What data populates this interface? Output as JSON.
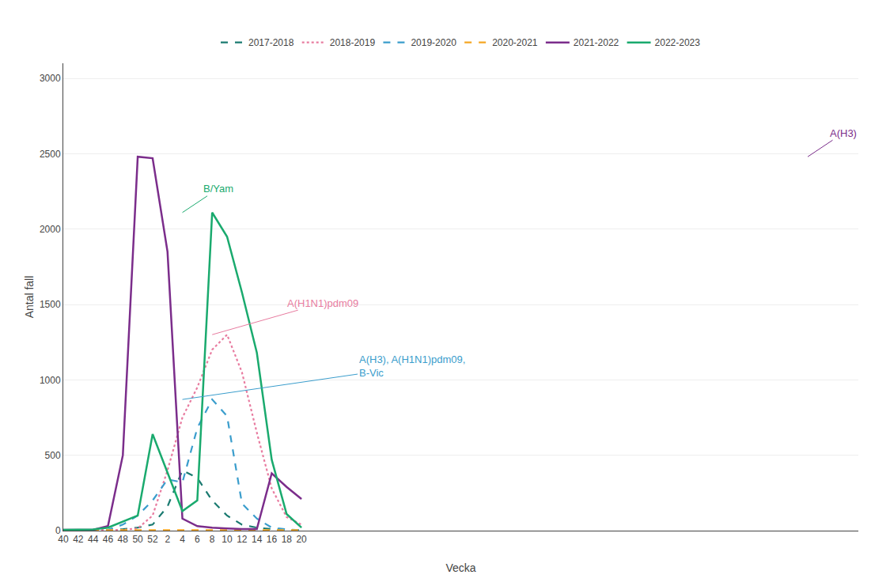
{
  "chart_data": {
    "type": "line",
    "xlabel": "Vecka",
    "ylabel": "Antal fall",
    "categories": [
      "40",
      "42",
      "44",
      "46",
      "48",
      "50",
      "52",
      "2",
      "4",
      "6",
      "8",
      "10",
      "12",
      "14",
      "16",
      "18",
      "20"
    ],
    "series": [
      {
        "name": "2017-2018",
        "color": "#1a7a70",
        "line_style": "dashed",
        "values": [
          5,
          5,
          5,
          5,
          10,
          20,
          40,
          160,
          400,
          350,
          200,
          100,
          40,
          20,
          10,
          5,
          3
        ]
      },
      {
        "name": "2018-2019",
        "color": "#e87ca0",
        "line_style": "dotted",
        "values": [
          5,
          5,
          5,
          5,
          5,
          15,
          100,
          400,
          750,
          950,
          1200,
          1300,
          1050,
          650,
          280,
          90,
          40
        ]
      },
      {
        "name": "2019-2020",
        "color": "#3a9dcc",
        "line_style": "dashed",
        "values": [
          5,
          5,
          5,
          5,
          40,
          100,
          200,
          340,
          320,
          680,
          870,
          760,
          180,
          80,
          20,
          8,
          3
        ]
      },
      {
        "name": "2020-2021",
        "color": "#f5a623",
        "line_style": "dashed",
        "values": [
          3,
          3,
          3,
          3,
          3,
          3,
          3,
          3,
          3,
          3,
          3,
          3,
          3,
          3,
          3,
          3,
          3
        ]
      },
      {
        "name": "2021-2022",
        "color": "#7b2d8b",
        "line_style": "solid",
        "values": [
          5,
          5,
          5,
          30,
          500,
          2480,
          2470,
          1850,
          80,
          30,
          20,
          15,
          10,
          10,
          380,
          290,
          210
        ]
      },
      {
        "name": "2022-2023",
        "color": "#1aaa6e",
        "line_style": "solid",
        "values": [
          5,
          5,
          8,
          20,
          60,
          100,
          640,
          380,
          130,
          200,
          2110,
          1950,
          1580,
          1180,
          470,
          110,
          20
        ]
      }
    ],
    "ylim": [
      0,
      3100
    ],
    "yticks": [
      0,
      500,
      1000,
      1500,
      2000,
      2500,
      3000
    ],
    "grid": true,
    "legend": "top",
    "annotations": [
      {
        "text": "A(H3)",
        "color": "#7b2d8b"
      },
      {
        "text": "B/Yam",
        "color": "#1aaa6e"
      },
      {
        "text": "A(H1N1)pdm09",
        "color": "#e87ca0"
      },
      {
        "text": "A(H3), A(H1N1)pdm09,\nB-Vic",
        "color": "#3a9dcc"
      }
    ]
  }
}
